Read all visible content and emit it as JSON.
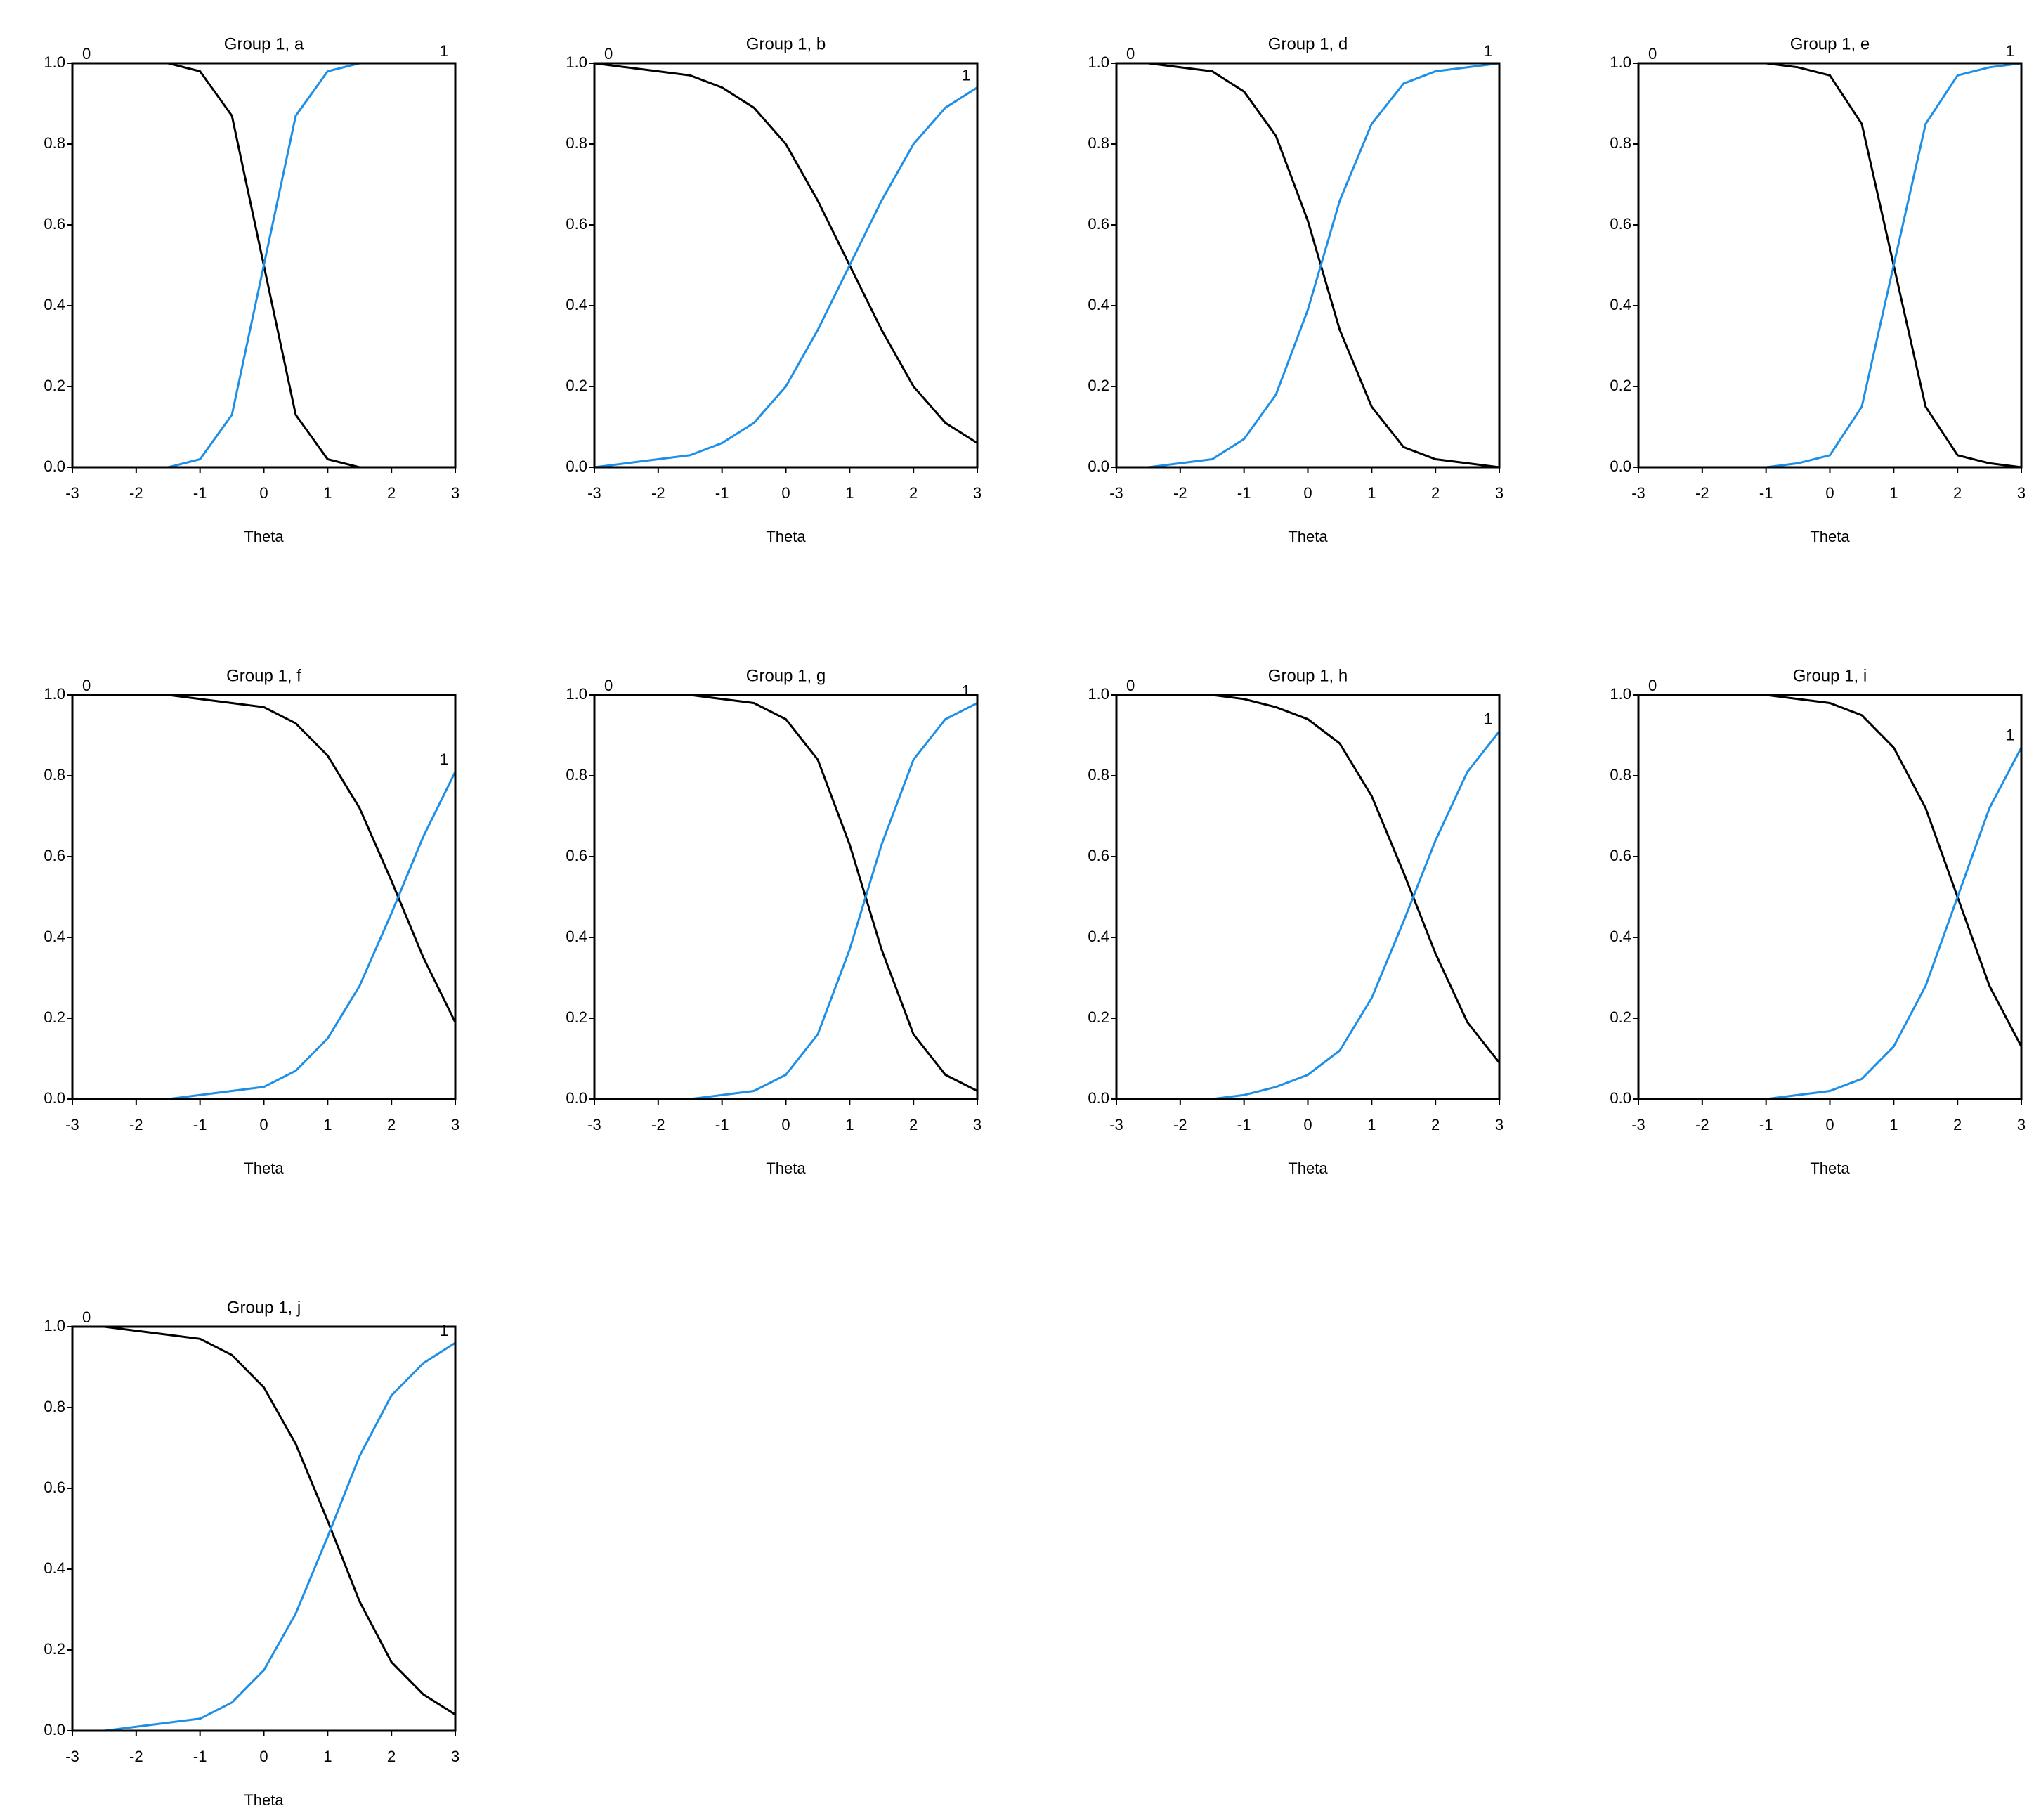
{
  "chart_data": [
    {
      "type": "line",
      "title": "Group 1, a",
      "x_label": "Theta",
      "x": [
        -3,
        -2.5,
        -2,
        -1.5,
        -1,
        -0.5,
        0,
        0.5,
        1,
        1.5,
        2,
        2.5,
        3
      ],
      "series": [
        {
          "name": "0",
          "color": "#000000",
          "values": [
            1,
            1,
            1,
            1,
            0.98,
            0.87,
            0.5,
            0.13,
            0.02,
            0,
            0,
            0,
            0
          ]
        },
        {
          "name": "1",
          "color": "#1e8fe6",
          "values": [
            0,
            0,
            0,
            0,
            0.02,
            0.13,
            0.5,
            0.87,
            0.98,
            1,
            1,
            1,
            1
          ]
        }
      ],
      "xlim": [
        -3,
        3
      ],
      "ylim": [
        0,
        1
      ],
      "xticks": [
        -3,
        -2,
        -1,
        0,
        1,
        2,
        3
      ],
      "yticks": [
        {
          "value": 0,
          "label": "0.0"
        },
        0.2,
        0.4,
        0.6,
        0.8,
        {
          "value": 1,
          "label": "1.0"
        }
      ],
      "grid": false
    },
    {
      "type": "line",
      "title": "Group 1, b",
      "x_label": "Theta",
      "x": [
        -3,
        -2.5,
        -2,
        -1.5,
        -1,
        -0.5,
        0,
        0.5,
        1,
        1.5,
        2,
        2.5,
        3
      ],
      "series": [
        {
          "name": "0",
          "color": "#000000",
          "values": [
            1,
            0.99,
            0.98,
            0.97,
            0.94,
            0.89,
            0.8,
            0.66,
            0.5,
            0.34,
            0.2,
            0.11,
            0.06
          ]
        },
        {
          "name": "1",
          "color": "#1e8fe6",
          "values": [
            0,
            0.01,
            0.02,
            0.03,
            0.06,
            0.11,
            0.2,
            0.34,
            0.5,
            0.66,
            0.8,
            0.89,
            0.94
          ]
        }
      ],
      "xlim": [
        -3,
        3
      ],
      "ylim": [
        0,
        1
      ],
      "xticks": [
        -3,
        -2,
        -1,
        0,
        1,
        2,
        3
      ],
      "yticks": [
        {
          "value": 0,
          "label": "0.0"
        },
        0.2,
        0.4,
        0.6,
        0.8,
        {
          "value": 1,
          "label": "1.0"
        }
      ],
      "grid": false
    },
    {
      "type": "line",
      "title": "Group 1, d",
      "x_label": "Theta",
      "x": [
        -3,
        -2.5,
        -2,
        -1.5,
        -1,
        -0.5,
        0,
        0.5,
        1,
        1.5,
        2,
        2.5,
        3
      ],
      "series": [
        {
          "name": "0",
          "color": "#000000",
          "values": [
            1,
            1,
            0.99,
            0.98,
            0.93,
            0.82,
            0.61,
            0.34,
            0.15,
            0.05,
            0.02,
            0.01,
            0
          ]
        },
        {
          "name": "1",
          "color": "#1e8fe6",
          "values": [
            0,
            0,
            0.01,
            0.02,
            0.07,
            0.18,
            0.39,
            0.66,
            0.85,
            0.95,
            0.98,
            0.99,
            1
          ]
        }
      ],
      "xlim": [
        -3,
        3
      ],
      "ylim": [
        0,
        1
      ],
      "xticks": [
        -3,
        -2,
        -1,
        0,
        1,
        2,
        3
      ],
      "yticks": [
        {
          "value": 0,
          "label": "0.0"
        },
        0.2,
        0.4,
        0.6,
        0.8,
        {
          "value": 1,
          "label": "1.0"
        }
      ],
      "grid": false
    },
    {
      "type": "line",
      "title": "Group 1, e",
      "x_label": "Theta",
      "x": [
        -3,
        -2.5,
        -2,
        -1.5,
        -1,
        -0.5,
        0,
        0.5,
        1,
        1.5,
        2,
        2.5,
        3
      ],
      "series": [
        {
          "name": "0",
          "color": "#000000",
          "values": [
            1,
            1,
            1,
            1,
            1,
            0.99,
            0.97,
            0.85,
            0.5,
            0.15,
            0.03,
            0.01,
            0
          ]
        },
        {
          "name": "1",
          "color": "#1e8fe6",
          "values": [
            0,
            0,
            0,
            0,
            0,
            0.01,
            0.03,
            0.15,
            0.5,
            0.85,
            0.97,
            0.99,
            1
          ]
        }
      ],
      "xlim": [
        -3,
        3
      ],
      "ylim": [
        0,
        1
      ],
      "xticks": [
        -3,
        -2,
        -1,
        0,
        1,
        2,
        3
      ],
      "yticks": [
        {
          "value": 0,
          "label": "0.0"
        },
        0.2,
        0.4,
        0.6,
        0.8,
        {
          "value": 1,
          "label": "1.0"
        }
      ],
      "grid": false
    },
    {
      "type": "line",
      "title": "Group 1, f",
      "x_label": "Theta",
      "x": [
        -3,
        -2.5,
        -2,
        -1.5,
        -1,
        -0.5,
        0,
        0.5,
        1,
        1.5,
        2,
        2.5,
        3
      ],
      "series": [
        {
          "name": "0",
          "color": "#000000",
          "values": [
            1,
            1,
            1,
            1,
            0.99,
            0.98,
            0.97,
            0.93,
            0.85,
            0.72,
            0.54,
            0.35,
            0.19
          ]
        },
        {
          "name": "1",
          "color": "#1e8fe6",
          "values": [
            0,
            0,
            0,
            0,
            0.01,
            0.02,
            0.03,
            0.07,
            0.15,
            0.28,
            0.46,
            0.65,
            0.81
          ]
        }
      ],
      "xlim": [
        -3,
        3
      ],
      "ylim": [
        0,
        1
      ],
      "xticks": [
        -3,
        -2,
        -1,
        0,
        1,
        2,
        3
      ],
      "yticks": [
        {
          "value": 0,
          "label": "0.0"
        },
        0.2,
        0.4,
        0.6,
        0.8,
        {
          "value": 1,
          "label": "1.0"
        }
      ],
      "grid": false
    },
    {
      "type": "line",
      "title": "Group 1, g",
      "x_label": "Theta",
      "x": [
        -3,
        -2.5,
        -2,
        -1.5,
        -1,
        -0.5,
        0,
        0.5,
        1,
        1.5,
        2,
        2.5,
        3
      ],
      "series": [
        {
          "name": "0",
          "color": "#000000",
          "values": [
            1,
            1,
            1,
            1,
            0.99,
            0.98,
            0.94,
            0.84,
            0.63,
            0.37,
            0.16,
            0.06,
            0.02
          ]
        },
        {
          "name": "1",
          "color": "#1e8fe6",
          "values": [
            0,
            0,
            0,
            0,
            0.01,
            0.02,
            0.06,
            0.16,
            0.37,
            0.63,
            0.84,
            0.94,
            0.98
          ]
        }
      ],
      "xlim": [
        -3,
        3
      ],
      "ylim": [
        0,
        1
      ],
      "xticks": [
        -3,
        -2,
        -1,
        0,
        1,
        2,
        3
      ],
      "yticks": [
        {
          "value": 0,
          "label": "0.0"
        },
        0.2,
        0.4,
        0.6,
        0.8,
        {
          "value": 1,
          "label": "1.0"
        }
      ],
      "grid": false
    },
    {
      "type": "line",
      "title": "Group 1, h",
      "x_label": "Theta",
      "x": [
        -3,
        -2.5,
        -2,
        -1.5,
        -1,
        -0.5,
        0,
        0.5,
        1,
        1.5,
        2,
        2.5,
        3
      ],
      "series": [
        {
          "name": "0",
          "color": "#000000",
          "values": [
            1,
            1,
            1,
            1,
            0.99,
            0.97,
            0.94,
            0.88,
            0.75,
            0.56,
            0.36,
            0.19,
            0.09
          ]
        },
        {
          "name": "1",
          "color": "#1e8fe6",
          "values": [
            0,
            0,
            0,
            0,
            0.01,
            0.03,
            0.06,
            0.12,
            0.25,
            0.44,
            0.64,
            0.81,
            0.91
          ]
        }
      ],
      "xlim": [
        -3,
        3
      ],
      "ylim": [
        0,
        1
      ],
      "xticks": [
        -3,
        -2,
        -1,
        0,
        1,
        2,
        3
      ],
      "yticks": [
        {
          "value": 0,
          "label": "0.0"
        },
        0.2,
        0.4,
        0.6,
        0.8,
        {
          "value": 1,
          "label": "1.0"
        }
      ],
      "grid": false
    },
    {
      "type": "line",
      "title": "Group 1, i",
      "x_label": "Theta",
      "x": [
        -3,
        -2.5,
        -2,
        -1.5,
        -1,
        -0.5,
        0,
        0.5,
        1,
        1.5,
        2,
        2.5,
        3
      ],
      "series": [
        {
          "name": "0",
          "color": "#000000",
          "values": [
            1,
            1,
            1,
            1,
            1,
            0.99,
            0.98,
            0.95,
            0.87,
            0.72,
            0.5,
            0.28,
            0.13
          ]
        },
        {
          "name": "1",
          "color": "#1e8fe6",
          "values": [
            0,
            0,
            0,
            0,
            0,
            0.01,
            0.02,
            0.05,
            0.13,
            0.28,
            0.5,
            0.72,
            0.87
          ]
        }
      ],
      "xlim": [
        -3,
        3
      ],
      "ylim": [
        0,
        1
      ],
      "xticks": [
        -3,
        -2,
        -1,
        0,
        1,
        2,
        3
      ],
      "yticks": [
        {
          "value": 0,
          "label": "0.0"
        },
        0.2,
        0.4,
        0.6,
        0.8,
        {
          "value": 1,
          "label": "1.0"
        }
      ],
      "grid": false
    },
    {
      "type": "line",
      "title": "Group 1, j",
      "x_label": "Theta",
      "x": [
        -3,
        -2.5,
        -2,
        -1.5,
        -1,
        -0.5,
        0,
        0.5,
        1,
        1.5,
        2,
        2.5,
        3
      ],
      "series": [
        {
          "name": "0",
          "color": "#000000",
          "values": [
            1,
            1,
            0.99,
            0.98,
            0.97,
            0.93,
            0.85,
            0.71,
            0.52,
            0.32,
            0.17,
            0.09,
            0.04
          ]
        },
        {
          "name": "1",
          "color": "#1e8fe6",
          "values": [
            0,
            0,
            0.01,
            0.02,
            0.03,
            0.07,
            0.15,
            0.29,
            0.48,
            0.68,
            0.83,
            0.91,
            0.96
          ]
        }
      ],
      "xlim": [
        -3,
        3
      ],
      "ylim": [
        0,
        1
      ],
      "xticks": [
        -3,
        -2,
        -1,
        0,
        1,
        2,
        3
      ],
      "yticks": [
        {
          "value": 0,
          "label": "0.0"
        },
        0.2,
        0.4,
        0.6,
        0.8,
        {
          "value": 1,
          "label": "1.0"
        }
      ],
      "grid": false
    }
  ]
}
